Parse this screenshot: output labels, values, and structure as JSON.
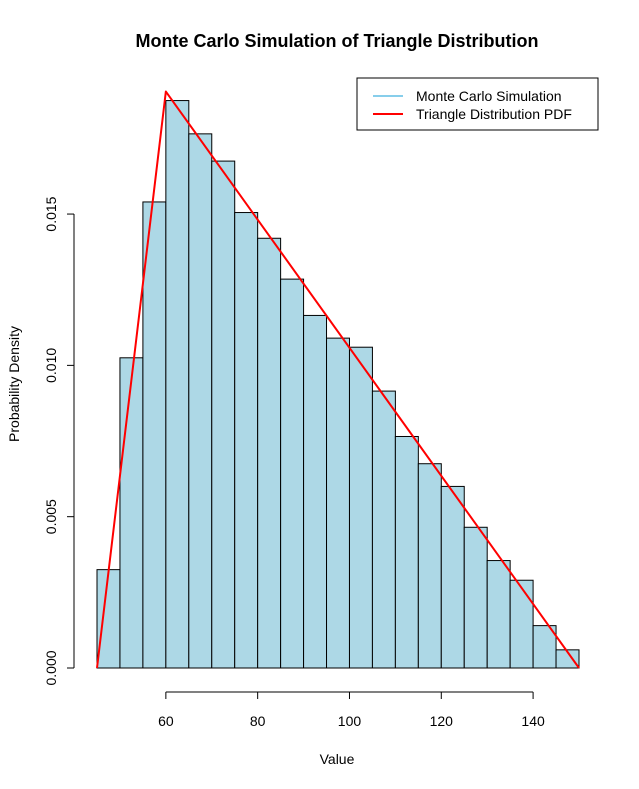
{
  "chart_data": {
    "type": "bar",
    "title": "Monte Carlo Simulation of Triangle Distribution",
    "xlabel": "Value",
    "ylabel": "Probability Density",
    "xlim": [
      45,
      150
    ],
    "ylim": [
      0,
      0.019
    ],
    "x_ticks": [
      60,
      80,
      100,
      120,
      140
    ],
    "y_ticks": [
      0.0,
      0.005,
      0.01,
      0.015
    ],
    "y_tick_labels": [
      "0.000",
      "0.005",
      "0.010",
      "0.015"
    ],
    "histogram": {
      "name": "Monte Carlo Simulation",
      "bin_edges": [
        45,
        50,
        55,
        60,
        65,
        70,
        75,
        80,
        85,
        90,
        95,
        100,
        105,
        110,
        115,
        120,
        125,
        130,
        135,
        140,
        145,
        150
      ],
      "densities": [
        0.00325,
        0.01025,
        0.0154,
        0.01875,
        0.01765,
        0.01675,
        0.01505,
        0.0142,
        0.01285,
        0.01165,
        0.0109,
        0.0106,
        0.00915,
        0.00765,
        0.00675,
        0.006,
        0.00465,
        0.00355,
        0.0029,
        0.0014,
        0.0006
      ],
      "fill_color": "#add8e6",
      "edge_color": "#000000"
    },
    "pdf_line": {
      "name": "Triangle Distribution PDF",
      "x": [
        45,
        60,
        150
      ],
      "y": [
        0.0,
        0.019048,
        0.0
      ],
      "color": "#ff0000"
    },
    "legend": {
      "placement": "top-right",
      "entries": [
        {
          "label": "Monte Carlo Simulation",
          "color": "#87ceeb"
        },
        {
          "label": "Triangle Distribution PDF",
          "color": "#ff0000"
        }
      ]
    }
  }
}
